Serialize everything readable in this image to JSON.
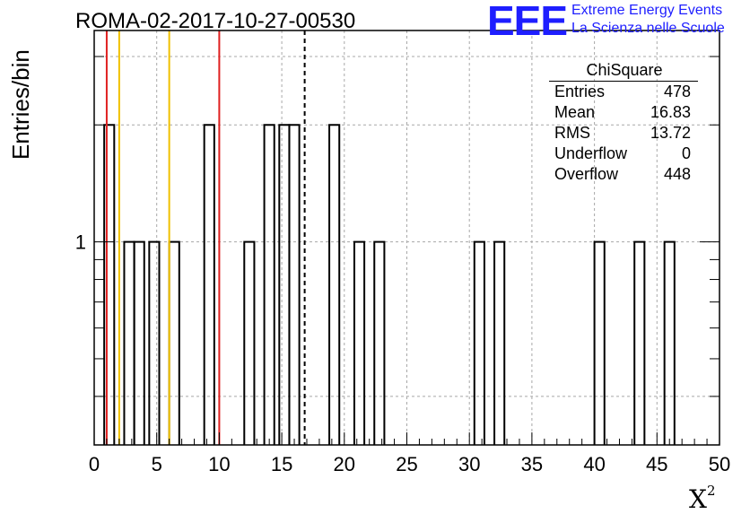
{
  "chart_data": {
    "type": "bar",
    "title": "ROMA-02-2017-10-27-00530",
    "xlabel": "X",
    "xlabel_superscript": "2",
    "ylabel": "Entries/bin",
    "xlim": [
      0,
      50
    ],
    "ylim": [
      0.3,
      3.5
    ],
    "yscale": "log",
    "grid": true,
    "bin_width": 0.8,
    "x_ticks": [
      "0",
      "5",
      "10",
      "15",
      "20",
      "25",
      "30",
      "35",
      "40",
      "45",
      "50"
    ],
    "y_ticks": [
      "1"
    ],
    "bins": [
      {
        "x": 0.8,
        "value": 2
      },
      {
        "x": 2.4,
        "value": 1
      },
      {
        "x": 3.2,
        "value": 1
      },
      {
        "x": 4.4,
        "value": 1
      },
      {
        "x": 6.0,
        "value": 1
      },
      {
        "x": 8.8,
        "value": 2
      },
      {
        "x": 12.0,
        "value": 1
      },
      {
        "x": 13.6,
        "value": 2
      },
      {
        "x": 14.8,
        "value": 2
      },
      {
        "x": 15.6,
        "value": 2
      },
      {
        "x": 18.8,
        "value": 2
      },
      {
        "x": 20.8,
        "value": 1
      },
      {
        "x": 22.4,
        "value": 1
      },
      {
        "x": 30.4,
        "value": 1
      },
      {
        "x": 32.0,
        "value": 1
      },
      {
        "x": 40.0,
        "value": 1
      },
      {
        "x": 43.2,
        "value": 1
      },
      {
        "x": 45.6,
        "value": 1
      }
    ],
    "vertical_lines": [
      {
        "x": 1.0,
        "color": "#e02020",
        "style": "solid"
      },
      {
        "x": 2.0,
        "color": "#f0c000",
        "style": "solid"
      },
      {
        "x": 6.0,
        "color": "#f0c000",
        "style": "solid"
      },
      {
        "x": 10.0,
        "color": "#e02020",
        "style": "solid"
      },
      {
        "x": 16.83,
        "color": "#000000",
        "style": "dashed"
      }
    ],
    "stats": {
      "name": "ChiSquare",
      "rows": [
        {
          "label": "Entries",
          "value": "478"
        },
        {
          "label": "Mean",
          "value": "16.83"
        },
        {
          "label": "RMS",
          "value": "13.72"
        },
        {
          "label": "Underflow",
          "value": "0"
        },
        {
          "label": "Overflow",
          "value": "448"
        }
      ]
    }
  },
  "logo": {
    "mark": "EEE",
    "line1": "Extreme Energy Events",
    "line2": "La Scienza nelle Scuole",
    "color": "#1e1eff"
  }
}
